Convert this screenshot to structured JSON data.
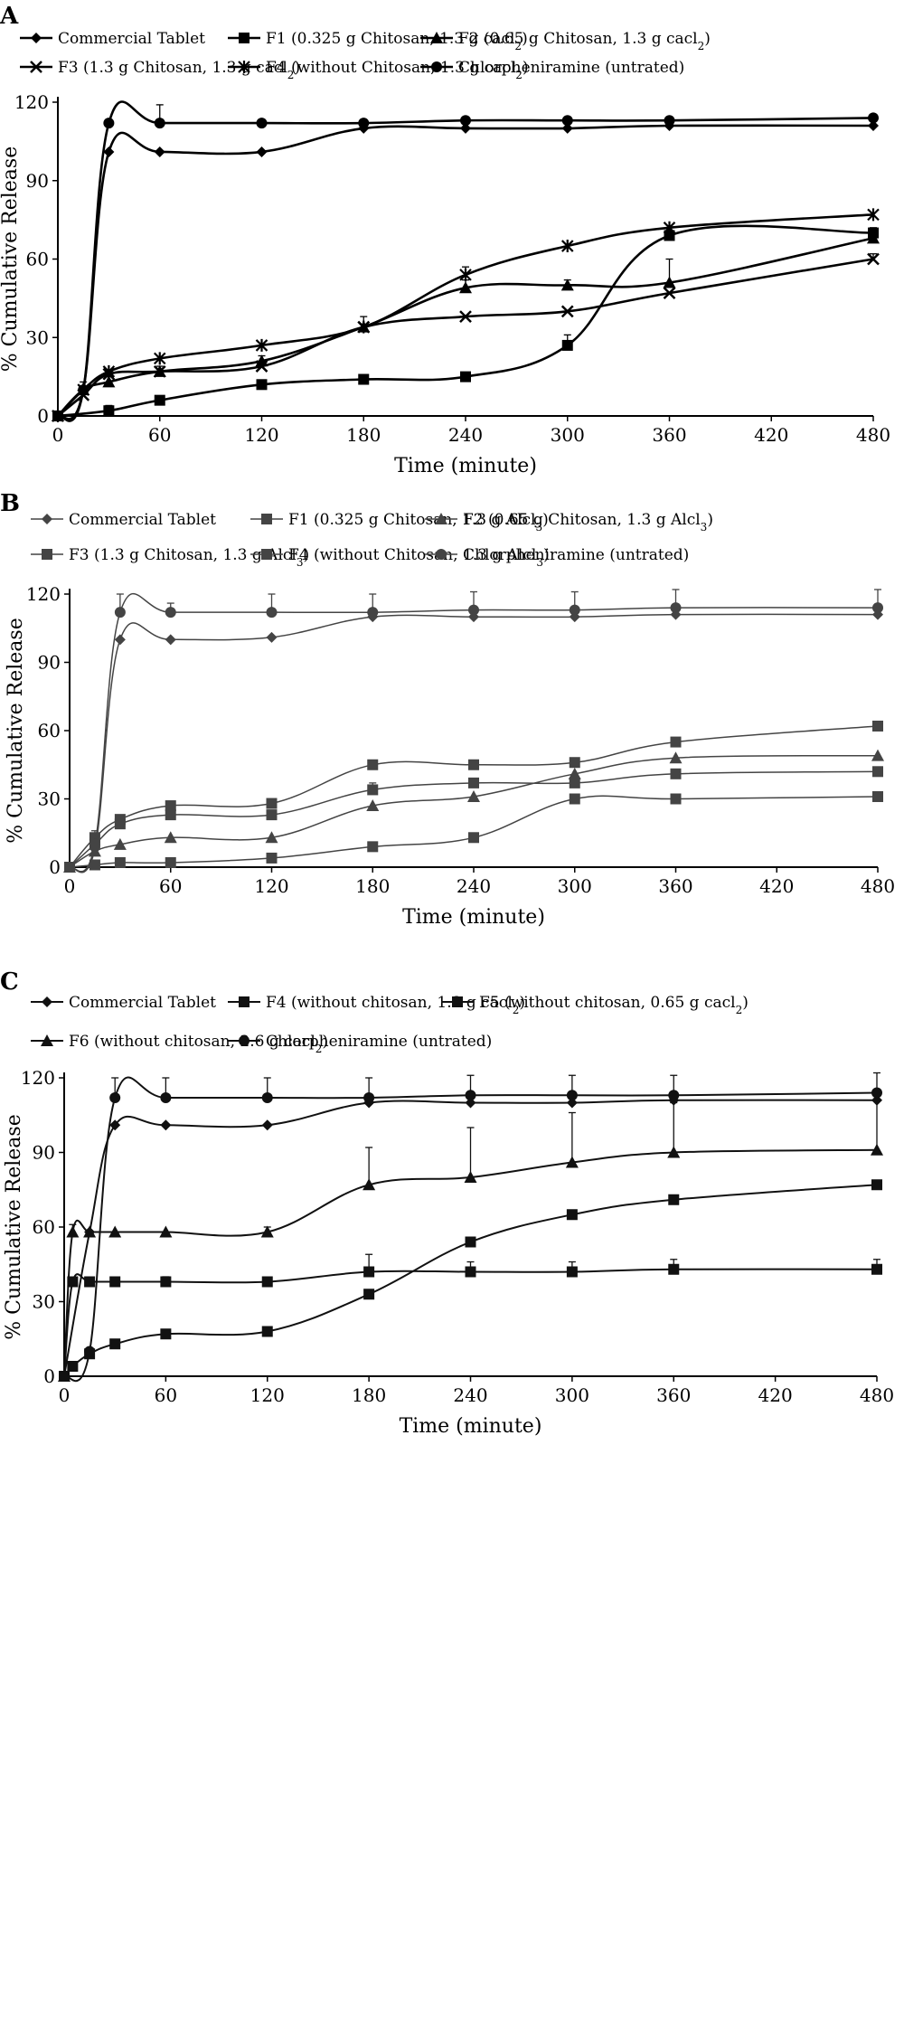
{
  "panels": [
    {
      "letter": "A",
      "legend_rows": [
        [
          "commercial",
          "f1",
          "f2"
        ],
        [
          "f3",
          "f4",
          "chlor"
        ]
      ],
      "series_labels": {
        "commercial": "Commercial Tablet",
        "f1": "F1 (0.325 g Chitosan, 1.3 g cacl2)",
        "f2": "F2 (0.65 g Chitosan, 1.3 g cacl2)",
        "f3": "F3 (1.3 g Chitosan, 1.3 g cacl2)",
        "f4": "F4 (without Chitosan, 1.3 g cacl2)",
        "chlor": "Chlorpheniramine (untrated)"
      }
    },
    {
      "letter": "B",
      "legend_rows": [
        [
          "commercial",
          "f1",
          "f2"
        ],
        [
          "f3",
          "f4",
          "chlor"
        ]
      ],
      "series_labels": {
        "commercial": "Commercial Tablet",
        "f1": "F1 (0.325 g Chitosan, 1.3 g Alcl3)",
        "f2": "F2 (0.65 g Chitosan, 1.3 g Alcl3)",
        "f3": "F3 (1.3 g Chitosan, 1.3 g Alcl3)",
        "f4": "F4 (without Chitosan, 1.3 g Alcl3)",
        "chlor": "Chlorpheniramine (untrated)"
      }
    },
    {
      "letter": "C",
      "legend_rows": [
        [
          "commercial",
          "f4",
          "f5"
        ],
        [
          "f6",
          "chlor"
        ]
      ],
      "series_labels": {
        "commercial": "Commercial Tablet",
        "f4": "F4 (without chitosan, 1.3 g cacl2)",
        "f5": "F5 (without chitosan, 0.65 g cacl2)",
        "f6": "F6 (without chitosan, 2.6 g cacl2)",
        "chlor": "Chlorpheniramine (untrated)"
      }
    }
  ],
  "chart_data": [
    {
      "type": "line",
      "panel": "A",
      "xlabel": "Time (minute)",
      "ylabel": "% Cumulative Release",
      "xlim": [
        0,
        480
      ],
      "ylim": [
        0,
        120
      ],
      "xticks": [
        0,
        60,
        120,
        180,
        240,
        300,
        360,
        420,
        480
      ],
      "yticks": [
        0,
        30,
        60,
        90,
        120
      ],
      "grid": false,
      "legend_position": "top",
      "series": [
        {
          "key": "commercial",
          "name": "Commercial Tablet",
          "marker": "diamond",
          "x": [
            0,
            15,
            30,
            60,
            120,
            180,
            240,
            300,
            360,
            480
          ],
          "y": [
            0,
            10,
            101,
            101,
            101,
            110,
            110,
            110,
            111,
            111
          ],
          "err": [
            0,
            0,
            0,
            0,
            0,
            0,
            0,
            0,
            0,
            0
          ]
        },
        {
          "key": "f1",
          "name": "F1 (0.325 g Chitosan, 1.3 g cacl2)",
          "marker": "square",
          "x": [
            0,
            30,
            60,
            120,
            180,
            240,
            300,
            360,
            480
          ],
          "y": [
            0,
            2,
            6,
            12,
            14,
            15,
            27,
            69,
            70
          ],
          "err": [
            0,
            2,
            1,
            1,
            1,
            1,
            4,
            2,
            2
          ]
        },
        {
          "key": "f2",
          "name": "F2 (0.65 g Chitosan, 1.3 g cacl2)",
          "marker": "triangle",
          "x": [
            0,
            15,
            30,
            60,
            120,
            180,
            240,
            300,
            360,
            480
          ],
          "y": [
            0,
            10,
            13,
            17,
            21,
            34,
            49,
            50,
            51,
            68
          ],
          "err": [
            0,
            3,
            2,
            2,
            2,
            4,
            3,
            2,
            9,
            3
          ]
        },
        {
          "key": "f3",
          "name": "F3 (1.3 g Chitosan, 1.3 g cacl2)",
          "marker": "cross",
          "x": [
            0,
            15,
            30,
            60,
            120,
            180,
            240,
            300,
            360,
            480
          ],
          "y": [
            0,
            8,
            16,
            17,
            19,
            34,
            38,
            40,
            47,
            60
          ],
          "err": [
            0,
            0,
            0,
            0,
            0,
            0,
            0,
            0,
            0,
            2
          ]
        },
        {
          "key": "f4",
          "name": "F4 (without Chitosan, 1.3 g cacl2)",
          "marker": "star",
          "x": [
            0,
            15,
            30,
            60,
            120,
            180,
            240,
            300,
            360,
            480
          ],
          "y": [
            0,
            10,
            17,
            22,
            27,
            34,
            54,
            65,
            72,
            77
          ],
          "err": [
            0,
            0,
            0,
            0,
            0,
            0,
            3,
            0,
            0,
            0
          ]
        },
        {
          "key": "chlor",
          "name": "Chlorpheniramine (untrated)",
          "marker": "circle",
          "x": [
            0,
            15,
            30,
            60,
            120,
            180,
            240,
            300,
            360,
            480
          ],
          "y": [
            0,
            10,
            112,
            112,
            112,
            112,
            113,
            113,
            113,
            114
          ],
          "err": [
            0,
            0,
            0,
            7,
            0,
            0,
            0,
            0,
            0,
            0
          ]
        }
      ]
    },
    {
      "type": "line",
      "panel": "B",
      "xlabel": "Time (minute)",
      "ylabel": "% Cumulative Release",
      "xlim": [
        0,
        480
      ],
      "ylim": [
        0,
        120
      ],
      "xticks": [
        0,
        60,
        120,
        180,
        240,
        300,
        360,
        420,
        480
      ],
      "yticks": [
        0,
        30,
        60,
        90,
        120
      ],
      "grid": false,
      "legend_position": "top",
      "series": [
        {
          "key": "commercial",
          "name": "Commercial Tablet",
          "marker": "diamond",
          "x": [
            0,
            15,
            30,
            60,
            120,
            180,
            240,
            300,
            360,
            480
          ],
          "y": [
            0,
            8,
            100,
            100,
            101,
            110,
            110,
            110,
            111,
            111
          ],
          "err": [
            0,
            0,
            0,
            0,
            0,
            0,
            0,
            0,
            0,
            0
          ]
        },
        {
          "key": "f1",
          "name": "F1 (0.325 g Chitosan, 1.3 g Alcl3)",
          "marker": "square",
          "x": [
            0,
            15,
            30,
            60,
            120,
            180,
            240,
            300,
            360,
            480
          ],
          "y": [
            0,
            1,
            2,
            2,
            4,
            9,
            13,
            30,
            30,
            31
          ],
          "err": [
            0,
            0,
            0,
            0,
            0,
            0,
            0,
            2,
            1,
            1
          ]
        },
        {
          "key": "f2",
          "name": "F2 (0.65 g Chitosan, 1.3 g Alcl3)",
          "marker": "triangle",
          "x": [
            0,
            15,
            30,
            60,
            120,
            180,
            240,
            300,
            360,
            480
          ],
          "y": [
            0,
            7,
            10,
            13,
            13,
            27,
            31,
            41,
            48,
            49
          ],
          "err": [
            0,
            0,
            0,
            0,
            0,
            0,
            0,
            0,
            0,
            0
          ]
        },
        {
          "key": "f3",
          "name": "F3 (1.3 g Chitosan, 1.3 g Alcl3)",
          "marker": "square",
          "x": [
            0,
            15,
            30,
            60,
            120,
            180,
            240,
            300,
            360,
            480
          ],
          "y": [
            0,
            13,
            21,
            27,
            28,
            45,
            45,
            46,
            55,
            62
          ],
          "err": [
            0,
            3,
            0,
            0,
            0,
            0,
            0,
            0,
            0,
            0
          ]
        },
        {
          "key": "f4",
          "name": "F4 (without Chitosan, 1.3 g Alcl3)",
          "marker": "square",
          "x": [
            0,
            15,
            30,
            60,
            120,
            180,
            240,
            300,
            360,
            480
          ],
          "y": [
            0,
            10,
            19,
            23,
            23,
            34,
            37,
            37,
            41,
            42
          ],
          "err": [
            0,
            5,
            2,
            1,
            2,
            3,
            1,
            2,
            2,
            2
          ]
        },
        {
          "key": "chlor",
          "name": "Chlorpheniramine (untrated)",
          "marker": "circle",
          "x": [
            0,
            15,
            30,
            60,
            120,
            180,
            240,
            300,
            360,
            480
          ],
          "y": [
            0,
            10,
            112,
            112,
            112,
            112,
            113,
            113,
            114,
            114
          ],
          "err": [
            0,
            0,
            8,
            4,
            8,
            8,
            8,
            8,
            8,
            8
          ]
        }
      ]
    },
    {
      "type": "line",
      "panel": "C",
      "xlabel": "Time (minute)",
      "ylabel": "% Cumulative Release",
      "xlim": [
        0,
        480
      ],
      "ylim": [
        0,
        120
      ],
      "xticks": [
        0,
        60,
        120,
        180,
        240,
        300,
        360,
        420,
        480
      ],
      "yticks": [
        0,
        30,
        60,
        90,
        120
      ],
      "grid": false,
      "legend_position": "top",
      "series": [
        {
          "key": "commercial",
          "name": "Commercial Tablet",
          "marker": "diamond",
          "x": [
            0,
            15,
            30,
            60,
            120,
            180,
            240,
            300,
            360,
            480
          ],
          "y": [
            0,
            58,
            101,
            101,
            101,
            110,
            110,
            110,
            111,
            111
          ],
          "err": [
            0,
            0,
            0,
            0,
            0,
            0,
            0,
            0,
            0,
            0
          ]
        },
        {
          "key": "f4",
          "name": "F4 (without chitosan, 1.3 g cacl2)",
          "marker": "square",
          "x": [
            0,
            5,
            15,
            30,
            60,
            120,
            180,
            240,
            300,
            360,
            480
          ],
          "y": [
            0,
            4,
            9,
            13,
            17,
            18,
            33,
            54,
            65,
            71,
            77
          ],
          "err": [
            0,
            0,
            0,
            0,
            0,
            0,
            0,
            0,
            0,
            0,
            0
          ]
        },
        {
          "key": "f5",
          "name": "F5 (without chitosan, 0.65 g cacl2)",
          "marker": "square",
          "x": [
            0,
            5,
            15,
            30,
            60,
            120,
            180,
            240,
            300,
            360,
            480
          ],
          "y": [
            0,
            38,
            38,
            38,
            38,
            38,
            42,
            42,
            42,
            43,
            43
          ],
          "err": [
            0,
            0,
            1,
            1,
            2,
            1,
            7,
            4,
            4,
            4,
            4
          ]
        },
        {
          "key": "f6",
          "name": "F6 (without chitosan, 2.6 g cacl2)",
          "marker": "triangle",
          "x": [
            0,
            5,
            15,
            30,
            60,
            120,
            180,
            240,
            300,
            360,
            480
          ],
          "y": [
            0,
            58,
            58,
            58,
            58,
            58,
            77,
            80,
            86,
            90,
            91
          ],
          "err": [
            0,
            3,
            0,
            0,
            0,
            2,
            15,
            20,
            20,
            20,
            20
          ]
        },
        {
          "key": "chlor",
          "name": "Chlorpheniramine (untrated)",
          "marker": "circle",
          "x": [
            0,
            15,
            30,
            60,
            120,
            180,
            240,
            300,
            360,
            480
          ],
          "y": [
            0,
            10,
            112,
            112,
            112,
            112,
            113,
            113,
            113,
            114
          ],
          "err": [
            0,
            0,
            8,
            8,
            8,
            8,
            8,
            8,
            8,
            8
          ]
        }
      ]
    }
  ]
}
